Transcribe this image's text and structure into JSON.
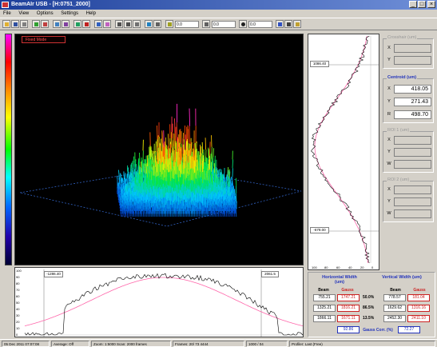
{
  "window": {
    "title": "BeamAIr USB - [H:0751_2000]",
    "buttons": {
      "minimize": "_",
      "maximize": "□",
      "close": "×"
    }
  },
  "menu": [
    "File",
    "View",
    "Options",
    "Settings",
    "Help"
  ],
  "toolbar": {
    "field1": "0.0",
    "field2": "0.0",
    "field3": "0.0"
  },
  "view3d": {
    "mode_label": "Fixed Mode"
  },
  "profiles": {
    "vertical_cursor_top": "1086.40",
    "vertical_cursor_bottom": "-679.00",
    "horizontal_cursor_left": "-1286.40",
    "horizontal_cursor_right": "2061.5",
    "h_yaxis": [
      "100",
      "90",
      "80",
      "70",
      "60",
      "50",
      "40",
      "30",
      "20",
      "10",
      "0"
    ],
    "v_xaxis": [
      "100",
      "80",
      "60",
      "40",
      "20",
      "0"
    ]
  },
  "right_panel": {
    "crosshair": {
      "title": "Crosshair (um)",
      "x": "",
      "y": ""
    },
    "centroid": {
      "title": "Centroid (um)",
      "x": "418.05",
      "y": "271.43",
      "r": "498.70"
    },
    "roi1": {
      "title": "ROI 1 (um)",
      "x": "",
      "y": "",
      "w": ""
    },
    "roi2": {
      "title": "ROI 2 (um)",
      "x": "",
      "y": "",
      "w": ""
    }
  },
  "width": {
    "horizontal_title": "Horizontal Width (um)",
    "vertical_title": "Vertical Width (um)",
    "sub_beam": "Beam",
    "sub_gauss": "Gauss",
    "rows": [
      {
        "pct": "50.0%",
        "h_beam": "755.21",
        "h_gauss": "1747.21",
        "v_beam": "778.57",
        "v_gauss": "181.04"
      },
      {
        "pct": "86.5%",
        "h_beam": "1325.21",
        "h_gauss": "1816.21",
        "v_beam": "1629.62",
        "v_gauss": "1316.16"
      },
      {
        "pct": "13.5%",
        "h_beam": "1866.11",
        "h_gauss": "1671.11",
        "v_beam": "2452.30",
        "v_gauss": "2411.10"
      }
    ],
    "h_ratio": "92.86",
    "ratio_label": "Gauss Corr. (%)",
    "v_ratio": "72.27"
  },
  "status": [
    "05 Dec 2011  07:07:08",
    "Average: Off",
    "Zoom: 1:5000  Scan: 2000 frames",
    "Frames: 20/ 73 4444",
    "1000 / 04",
    "Profiler: Last (Free)"
  ],
  "colors": {
    "h_measured": "#000000",
    "h_fit": "#ff66aa",
    "v_measured": "#000000",
    "v_fit": "#ff66aa"
  }
}
